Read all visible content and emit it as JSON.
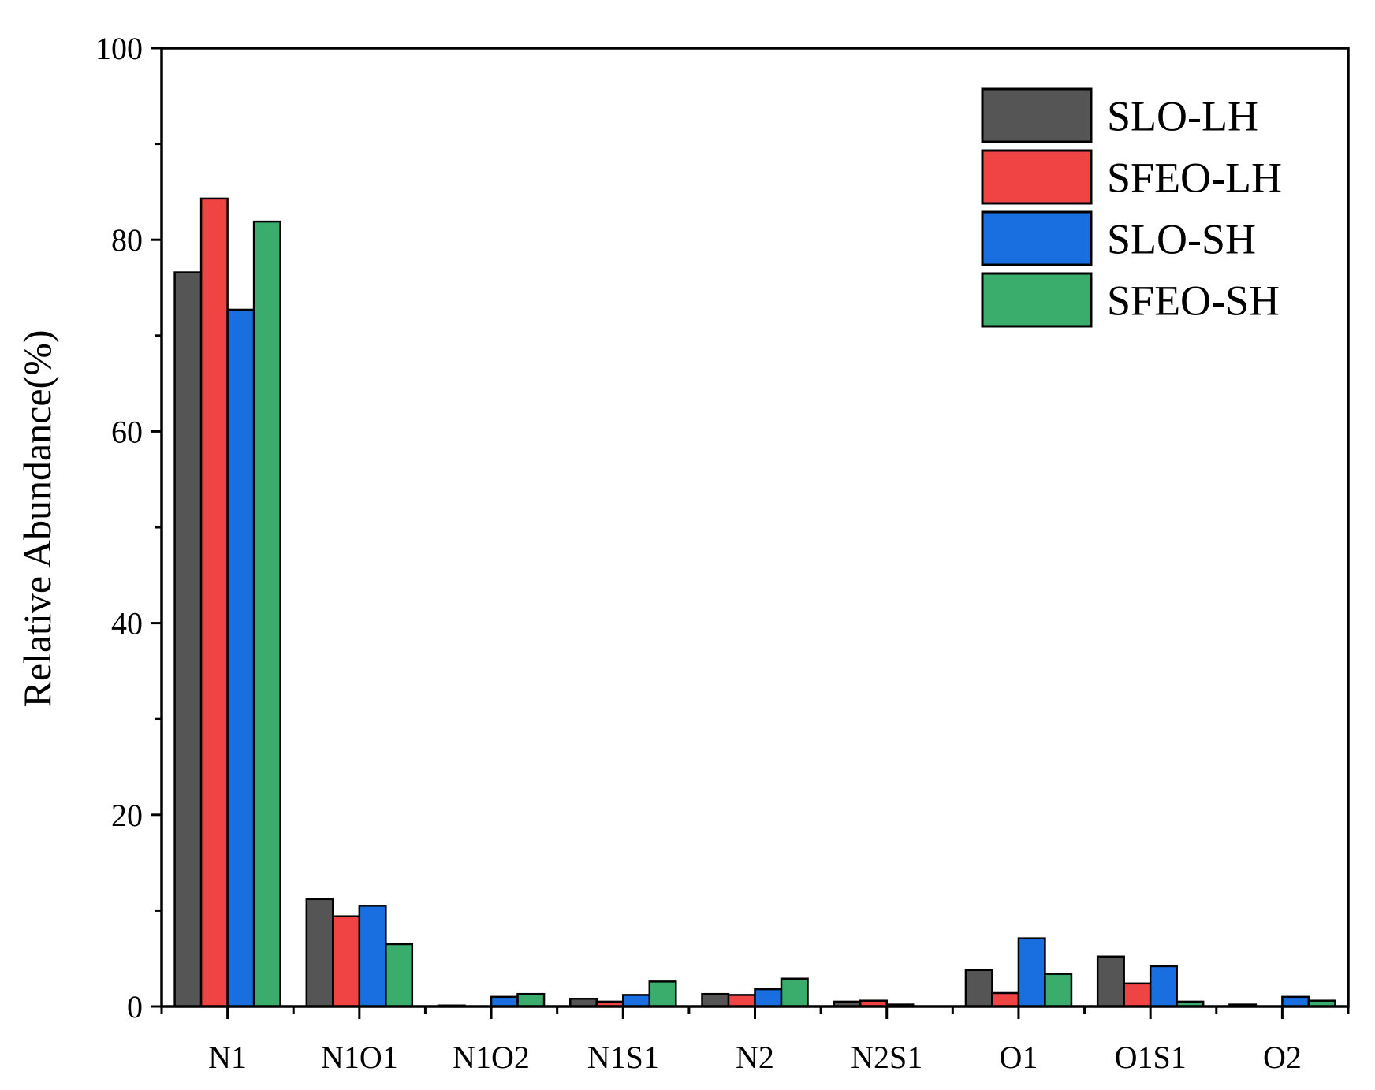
{
  "chart_data": {
    "type": "bar",
    "title": "",
    "xlabel": "",
    "ylabel": "Relative Abundance(%)",
    "ylim": [
      0,
      100
    ],
    "yticks": [
      "0",
      "20",
      "40",
      "60",
      "80",
      "100"
    ],
    "grid": false,
    "legend_position": "top-right",
    "categories": [
      "N1",
      "N1O1",
      "N1O2",
      "N1S1",
      "N2",
      "N2S1",
      "O1",
      "O1S1",
      "O2"
    ],
    "series": [
      {
        "name": "SLO-LH",
        "color": "#555555",
        "values": [
          76.6,
          11.2,
          0.1,
          0.8,
          1.3,
          0.5,
          3.8,
          5.2,
          0.2
        ]
      },
      {
        "name": "SFEO-LH",
        "color": "#f04444",
        "values": [
          84.3,
          9.4,
          0.0,
          0.5,
          1.2,
          0.6,
          1.4,
          2.4,
          0.0
        ]
      },
      {
        "name": "SLO-SH",
        "color": "#1a6fe0",
        "values": [
          72.7,
          10.5,
          1.0,
          1.2,
          1.8,
          0.2,
          7.1,
          4.2,
          1.0
        ]
      },
      {
        "name": "SFEO-SH",
        "color": "#3aac6c",
        "values": [
          81.9,
          6.5,
          1.3,
          2.6,
          2.9,
          0.0,
          3.4,
          0.5,
          0.6
        ]
      }
    ]
  }
}
